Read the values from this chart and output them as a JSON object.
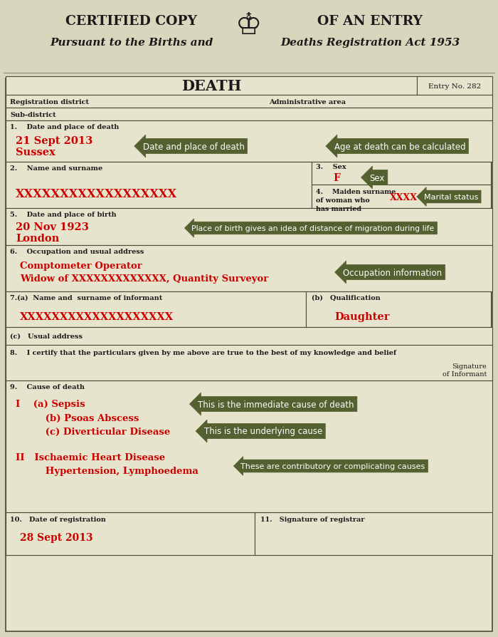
{
  "bg_header": "#d8d6bc",
  "bg_form": "#e6e4cc",
  "dark_olive": "#546030",
  "red_text": "#cc0000",
  "black_text": "#1a1a1a",
  "header_title1": "CERTIFIED COPY",
  "header_title2": "OF AN ENTRY",
  "header_sub1": "Pursuant to the Births and",
  "header_sub2": "Deaths Registration Act 1953",
  "form_title": "DEATH",
  "entry_no": "Entry No. 282",
  "reg_district": "Registration district",
  "admin_area": "Administrative area",
  "sub_district": "Sub-district",
  "field1_label": "1.    Date and place of death",
  "field1_val1": "21 Sept 2013",
  "field1_val2": "Sussex",
  "arrow1_text": "Date and place of death",
  "arrow2_text": "Age at death can be calculated",
  "field2_label": "2.    Name and surname",
  "field2_val": "XXXXXXXXXXXXXXXXXX",
  "field3_label": "3.    Sex",
  "field3_val": "F",
  "arrow3_text": "Sex",
  "field4_label": "4.    Maiden surname\nof woman who\nhas married",
  "field4_val": "XXXX",
  "arrow4_text": "Marital status",
  "field5_label": "5.    Date and place of birth",
  "field5_val1": "20 Nov 1923",
  "field5_val2": "London",
  "arrow5_text": "Place of birth gives an idea of distance of migration during life",
  "field6_label": "6.    Occupation and usual address",
  "field6_val1": "Comptometer Operator",
  "field6_val2": "Widow of XXXXXXXXXXXXX, Quantity Surveyor",
  "arrow6_text": "Occupation information",
  "field7a_label": "7.(a)  Name and  surname of informant",
  "field7a_val": "XXXXXXXXXXXXXXXXXXX",
  "field7b_label": "(b)   Qualification",
  "field7b_val": "Daughter",
  "field7c_label": "(c)   Usual address",
  "field8_label": "8.    I certify that the particulars given by me above are true to the best of my knowledge and belief",
  "field8_sig": "Signature\nof Informant",
  "field9_label": "9.    Cause of death",
  "field9_Ia": "I    (a) Sepsis",
  "field9_Ib": "      (b) Psoas Abscess",
  "field9_Ic": "      (c) Diverticular Disease",
  "field9_II": "II   Ischaemic Heart Disease",
  "field9_II2": "      Hypertension, Lymphoedema",
  "arrow9a_text": "This is the immediate cause of death",
  "arrow9c_text": "This is the underlying cause",
  "arrow9II_text": "These are contributory or complicating causes",
  "field10_label": "10.   Date of registration",
  "field10_val": "28 Sept 2013",
  "field11_label": "11.   Signature of registrar",
  "border_color": "#4a4a36",
  "header_line_color": "#888870"
}
